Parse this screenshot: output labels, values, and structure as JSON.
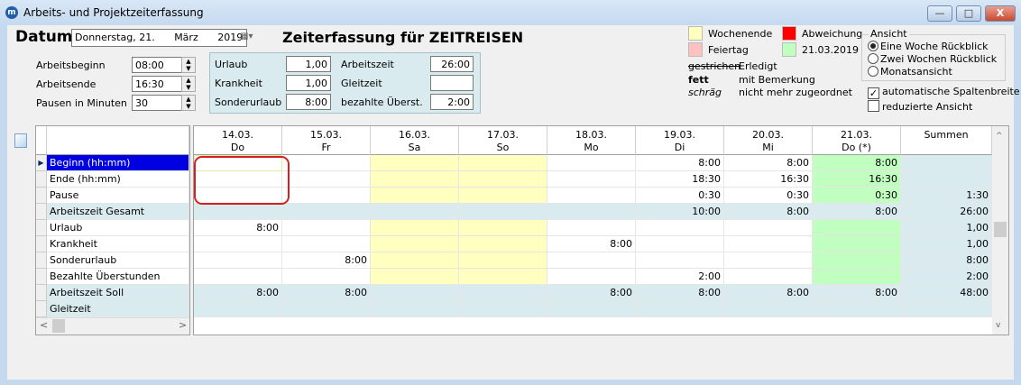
{
  "window": {
    "title": "Arbeits- und Projektzeiterfassung",
    "minimize": "—",
    "maximize": "□",
    "close": "X"
  },
  "header": {
    "datum_label": "Datum",
    "date_day": "Donnerstag, 21.",
    "date_month": "März",
    "date_year": "2019",
    "headline": "Zeiterfassung für ZEITREISEN"
  },
  "inputs": [
    {
      "label": "Arbeitsbeginn",
      "value": "08:00"
    },
    {
      "label": "Arbeitsende",
      "value": "16:30"
    },
    {
      "label": "Pausen in Minuten",
      "value": "30"
    }
  ],
  "summary": [
    {
      "label": "Urlaub",
      "value": "1,00"
    },
    {
      "label": "Krankheit",
      "value": "1,00"
    },
    {
      "label": "Sonderurlaub",
      "value": "8:00"
    },
    {
      "label": "Arbeitszeit",
      "value": "26:00"
    },
    {
      "label": "Gleitzeit",
      "value": ""
    },
    {
      "label": "bezahlte Überst.",
      "value": "2:00"
    }
  ],
  "legend": {
    "weekend": "Wochenende",
    "holiday": "Feiertag",
    "deviation": "Abweichung",
    "today": "21.03.2019",
    "struck": "gestrichen",
    "struck_desc": "Erledigt",
    "bold": "fett",
    "bold_desc": "mit Bemerkung",
    "italic": "schräg",
    "italic_desc": "nicht mehr zugeordnet",
    "colors": {
      "weekend": "#ffffc0",
      "holiday": "#ffc0c0",
      "deviation": "#ff0000",
      "today": "#c0ffc0",
      "total": "#daebf0"
    }
  },
  "view": {
    "title": "Ansicht",
    "options": [
      {
        "label": "Eine Woche Rückblick",
        "selected": true
      },
      {
        "label": "Zwei Wochen Rückblick",
        "selected": false
      },
      {
        "label": "Monatsansicht",
        "selected": false
      }
    ],
    "auto_width": {
      "label": "automatische Spaltenbreite",
      "checked": true
    },
    "reduced": {
      "label": "reduzierte Ansicht",
      "checked": false
    }
  },
  "grid": {
    "rows": [
      "Beginn (hh:mm)",
      "Ende (hh:mm)",
      "Pause",
      "Arbeitszeit Gesamt",
      "Urlaub",
      "Krankheit",
      "Sonderurlaub",
      "Bezahlte Überstunden",
      "Arbeitszeit Soll",
      "Gleitzeit"
    ],
    "total_rows": [
      3,
      8,
      9
    ],
    "selected_row": 0,
    "columns": [
      {
        "date": "14.03.",
        "day": "Do",
        "type": "normal",
        "values": [
          "",
          "",
          "",
          "",
          "8:00",
          "",
          "",
          "",
          "8:00",
          ""
        ]
      },
      {
        "date": "15.03.",
        "day": "Fr",
        "type": "normal",
        "values": [
          "",
          "",
          "",
          "",
          "",
          "",
          "8:00",
          "",
          "8:00",
          ""
        ]
      },
      {
        "date": "16.03.",
        "day": "Sa",
        "type": "weekend",
        "values": [
          "",
          "",
          "",
          "",
          "",
          "",
          "",
          "",
          "",
          ""
        ]
      },
      {
        "date": "17.03.",
        "day": "So",
        "type": "weekend",
        "values": [
          "",
          "",
          "",
          "",
          "",
          "",
          "",
          "",
          "",
          ""
        ]
      },
      {
        "date": "18.03.",
        "day": "Mo",
        "type": "normal",
        "values": [
          "",
          "",
          "",
          "",
          "",
          "8:00",
          "",
          "",
          "8:00",
          ""
        ]
      },
      {
        "date": "19.03.",
        "day": "Di",
        "type": "normal",
        "values": [
          "8:00",
          "18:30",
          "0:30",
          "10:00",
          "",
          "",
          "",
          "2:00",
          "8:00",
          ""
        ]
      },
      {
        "date": "20.03.",
        "day": "Mi",
        "type": "normal",
        "values": [
          "8:00",
          "16:30",
          "0:30",
          "8:00",
          "",
          "",
          "",
          "",
          "8:00",
          ""
        ]
      },
      {
        "date": "21.03.",
        "day": "Do (*)",
        "type": "today",
        "values": [
          "8:00",
          "16:30",
          "0:30",
          "8:00",
          "",
          "",
          "",
          "",
          "8:00",
          ""
        ]
      },
      {
        "date": "Summen",
        "day": "",
        "type": "sum",
        "values": [
          "",
          "",
          "1:30",
          "26:00",
          "1,00",
          "1,00",
          "8:00",
          "2:00",
          "48:00",
          ""
        ]
      }
    ]
  }
}
